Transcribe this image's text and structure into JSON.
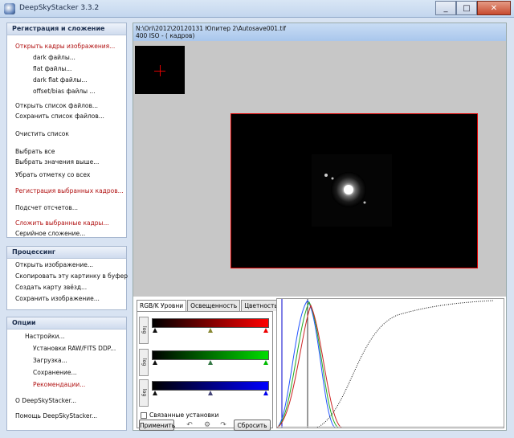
{
  "window": {
    "title": "DeepSkyStacker 3.3.2",
    "minimize": "_",
    "maximize": "□",
    "close": "✕"
  },
  "sidebar": {
    "registration": {
      "header": "Регистрация и сложение",
      "items": [
        {
          "label": "Открыть кадры изображения...",
          "style": "red"
        },
        {
          "label": "dark файлы...",
          "style": "indent"
        },
        {
          "label": "flat файлы...",
          "style": "indent"
        },
        {
          "label": "dark flat файлы...",
          "style": "indent"
        },
        {
          "label": "offset/bias файлы ...",
          "style": "indent"
        },
        {
          "label": "Открыть список файлов...",
          "style": "normal"
        },
        {
          "label": "Сохранить список файлов...",
          "style": "normal"
        },
        {
          "label": "Очистить список",
          "style": "normal"
        },
        {
          "label": "Выбрать все",
          "style": "normal"
        },
        {
          "label": "Выбрать значения выше...",
          "style": "normal"
        },
        {
          "label": "Убрать отметку со всех",
          "style": "normal"
        },
        {
          "label": "Регистрация выбранных кадров...",
          "style": "red"
        },
        {
          "label": "Подсчет отсчетов...",
          "style": "normal"
        },
        {
          "label": "Сложить выбранные кадры...",
          "style": "red"
        },
        {
          "label": "Серийное сложение...",
          "style": "normal"
        }
      ]
    },
    "processing": {
      "header": "Процессинг",
      "items": [
        {
          "label": "Открыть изображение..."
        },
        {
          "label": "Скопировать эту картинку в буфер"
        },
        {
          "label": "Создать карту звёзд..."
        },
        {
          "label": "Сохранить изображение..."
        }
      ]
    },
    "options": {
      "header": "Опции",
      "items": [
        {
          "label": "Настройки...",
          "style": "indent2"
        },
        {
          "label": "Установки RAW/FITS DDP...",
          "style": "indent"
        },
        {
          "label": "Загрузка...",
          "style": "indent"
        },
        {
          "label": "Сохранение...",
          "style": "indent"
        },
        {
          "label": "Рекомендации...",
          "style": "indent-red"
        },
        {
          "label": "О DeepSkyStacker...",
          "style": "normal"
        },
        {
          "label": "Помощь DeepSkyStacker...",
          "style": "normal"
        }
      ]
    }
  },
  "main": {
    "path": "N:\\Ori\\2012\\20120131 Юпитер 2\\Autosave001.tif",
    "frame_info": "400 ISO - ( кадров)",
    "tabs": [
      "RGB/K Уровни",
      "Освещенность",
      "Цветность"
    ],
    "log_label": "log",
    "linked_label": "Связанные установки",
    "apply_label": "Применить",
    "reset_label": "Сбросить",
    "undo_icon": "undo-icon",
    "redo_icon": "redo-icon",
    "settings_icon": "gear-icon",
    "colors": {
      "red": "#ff0000",
      "green": "#00dd00",
      "blue": "#0000ff"
    }
  }
}
